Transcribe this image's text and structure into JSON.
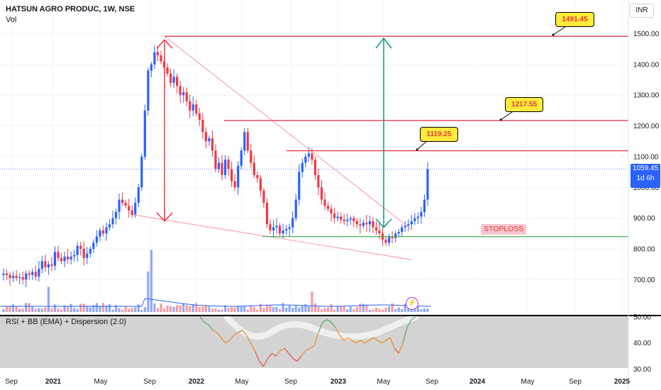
{
  "header": {
    "ticker_title": "HATSUN AGRO PRODUC, 1W, NSE",
    "volume_label": "Vol",
    "currency": "INR"
  },
  "rsi_title": "RSI + BB (EMA) + Dispersion (2.0)",
  "last_price": {
    "value": "1059.45",
    "countdown": "1d 6h"
  },
  "annotations": {
    "target_1491": "1491.45",
    "target_1217": "1217.55",
    "target_1119": "1119.25",
    "stoploss_label": "STOPLOSS",
    "sparkle_icon": "lightning-icon"
  },
  "colors": {
    "up": "#2962ff",
    "down": "#f23645",
    "resistance": "#e53950",
    "stoploss": "#4caf50",
    "wedge": "#f7a6b0",
    "target_arrow": "#14967f",
    "volume_up": "#90aaf7",
    "volume_down": "#f89ca3"
  },
  "chart_data": {
    "type": "candlestick",
    "title": "HATSUN AGRO PRODUC, 1W, NSE",
    "ylim": [
      650,
      1530
    ],
    "y_ticks": [
      700,
      800,
      900,
      1000,
      1100,
      1200,
      1300,
      1400,
      1500
    ],
    "y_tick_labels": [
      "700.00",
      "800.00",
      "900.00",
      "1000.00",
      "1100.00",
      "1200.00",
      "1300.00",
      "1400.00",
      "1500.00"
    ],
    "x_tick_labels": [
      "Sep",
      "2021",
      "May",
      "Sep",
      "2022",
      "May",
      "Sep",
      "2023",
      "May",
      "Sep",
      "2024",
      "May",
      "Sep",
      "2025"
    ],
    "close_path_weekly": [
      720,
      715,
      705,
      712,
      705,
      708,
      700,
      720,
      715,
      725,
      710,
      735,
      760,
      740,
      750,
      745,
      790,
      770,
      760,
      775,
      765,
      775,
      780,
      810,
      800,
      770,
      785,
      800,
      820,
      840,
      860,
      850,
      870,
      880,
      900,
      920,
      960,
      950,
      940,
      925,
      910,
      950,
      1000,
      1100,
      1250,
      1380,
      1400,
      1440,
      1430,
      1410,
      1390,
      1370,
      1340,
      1360,
      1330,
      1300,
      1310,
      1280,
      1250,
      1270,
      1240,
      1220,
      1180,
      1150,
      1160,
      1120,
      1060,
      1080,
      1040,
      1090,
      1060,
      1020,
      1000,
      1070,
      1120,
      1180,
      1120,
      1080,
      1040,
      1030,
      990,
      950,
      880,
      860,
      870,
      875,
      850,
      860,
      865,
      870,
      900,
      960,
      1050,
      1080,
      1100,
      1110,
      1090,
      1040,
      1000,
      960,
      940,
      930,
      915,
      900,
      905,
      895,
      890,
      895,
      900,
      890,
      880,
      875,
      885,
      880,
      890,
      870,
      860,
      850,
      830,
      820,
      840,
      835,
      850,
      855,
      870,
      875,
      880,
      890,
      900,
      905,
      920,
      960,
      1059.45
    ],
    "resistance_levels": [
      1491.45,
      1217.55,
      1119.25
    ],
    "stoploss_level": 840,
    "last_price": 1059.45,
    "rsi": {
      "ylim": [
        28,
        52
      ],
      "y_ticks": [
        30,
        40,
        50
      ],
      "y_tick_labels": [
        "30.00",
        "40.00",
        "50.00"
      ],
      "values": [
        50,
        48,
        47,
        45,
        44,
        42,
        40,
        41,
        43,
        44,
        45,
        43,
        40,
        37,
        33,
        31,
        34,
        36,
        35,
        37,
        38,
        36,
        34,
        33,
        35,
        37,
        38,
        39,
        44,
        48,
        49,
        48,
        46,
        43,
        41,
        42,
        41,
        40,
        41,
        40,
        41,
        42,
        41,
        40,
        41,
        42,
        38,
        36,
        40,
        46,
        49,
        50
      ]
    }
  }
}
